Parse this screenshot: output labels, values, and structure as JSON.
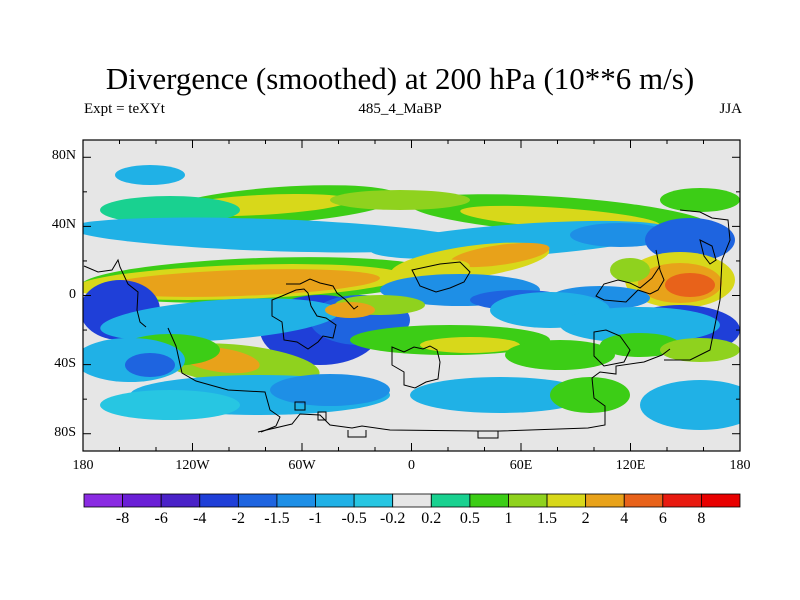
{
  "chart_data": {
    "type": "heatmap",
    "title": "Divergence (smoothed) at 200 hPa (10**6 m/s)",
    "subtitle_left": "Expt = teXYt",
    "subtitle_center": "485_4_MaBP",
    "subtitle_right": "JJA",
    "x_ticks": [
      "180",
      "120W",
      "60W",
      "0",
      "60E",
      "120E",
      "180"
    ],
    "y_ticks": [
      "80N",
      "40N",
      "0",
      "40S",
      "80S"
    ],
    "xlim": [
      -180,
      180
    ],
    "ylim": [
      -90,
      90
    ],
    "colorbar": {
      "labels": [
        "-8",
        "-6",
        "-4",
        "-2",
        "-1.5",
        "-1",
        "-0.5",
        "-0.2",
        "0.2",
        "0.5",
        "1",
        "1.5",
        "2",
        "4",
        "6",
        "8"
      ],
      "colors": [
        "#8a2be2",
        "#6a1fd6",
        "#4a22c8",
        "#1f3fd8",
        "#1e64e0",
        "#1e8fe6",
        "#20b1e6",
        "#27c6e2",
        "#e6e6e6",
        "#19d190",
        "#3ccd16",
        "#8fd21e",
        "#d8d81a",
        "#e8a21a",
        "#e8621a",
        "#e81a10",
        "#e80000"
      ]
    },
    "colors": {
      "neutral": "#e6e6e6",
      "coast": "#000000"
    }
  }
}
